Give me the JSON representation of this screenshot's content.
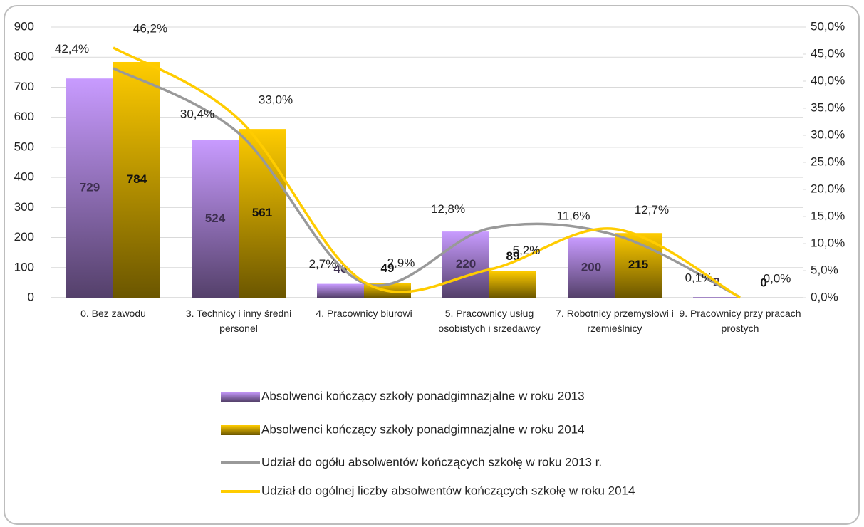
{
  "chart_data": {
    "type": "bar",
    "categories": [
      "0. Bez zawodu",
      "3. Technicy i inny średni personel",
      "4. Pracownicy biurowi",
      "5. Pracownicy usług osobistych i srzedawcy",
      "7. Robotnicy przemysłowi i rzemieślnicy",
      "9. Pracownicy przy pracach prostych"
    ],
    "series": [
      {
        "name": "Absolwenci kończący szkoły ponadgimnazjalne w roku 2013",
        "type": "bar",
        "color": "#c89bff",
        "values": [
          729,
          524,
          46,
          220,
          200,
          2
        ]
      },
      {
        "name": "Absolwenci kończący szkoły ponadgimnazjalne w roku 2014",
        "type": "bar",
        "color": "#ffcc00",
        "values": [
          784,
          561,
          49,
          89,
          215,
          0
        ]
      },
      {
        "name": "Udział do ogółu absolwentów kończących szkołę w roku 2013 r.",
        "type": "line",
        "axis": "y2",
        "color": "#999999",
        "values": [
          42.4,
          30.4,
          2.7,
          12.8,
          11.6,
          0.1
        ],
        "value_labels": [
          "42,4%",
          "30,4%",
          "2,7%",
          "12,8%",
          "11,6%",
          "0,1%"
        ]
      },
      {
        "name": "Udział  do ogólnej liczby absolwentów kończących szkołę w roku 2014",
        "type": "line",
        "axis": "y2",
        "color": "#ffcc00",
        "values": [
          46.2,
          33.0,
          2.9,
          5.2,
          12.7,
          0.0
        ],
        "value_labels": [
          "46,2%",
          "33,0%",
          "2,9%",
          "5,2%",
          "12,7%",
          "0,0%"
        ]
      }
    ],
    "ylim": [
      0,
      900
    ],
    "yticks": [
      0,
      100,
      200,
      300,
      400,
      500,
      600,
      700,
      800,
      900
    ],
    "y2lim": [
      0,
      50
    ],
    "y2ticks": [
      {
        "value": 0,
        "label": "0,0%"
      },
      {
        "value": 5,
        "label": "5,0%"
      },
      {
        "value": 10,
        "label": "10,0%"
      },
      {
        "value": 15,
        "label": "15,0%"
      },
      {
        "value": 20,
        "label": "20,0%"
      },
      {
        "value": 25,
        "label": "25,0%"
      },
      {
        "value": 30,
        "label": "30,0%"
      },
      {
        "value": 35,
        "label": "35,0%"
      },
      {
        "value": 40,
        "label": "40,0%"
      },
      {
        "value": 45,
        "label": "45,0%"
      },
      {
        "value": 50,
        "label": "50,0%"
      }
    ],
    "grid": true,
    "legend": "bottom"
  }
}
